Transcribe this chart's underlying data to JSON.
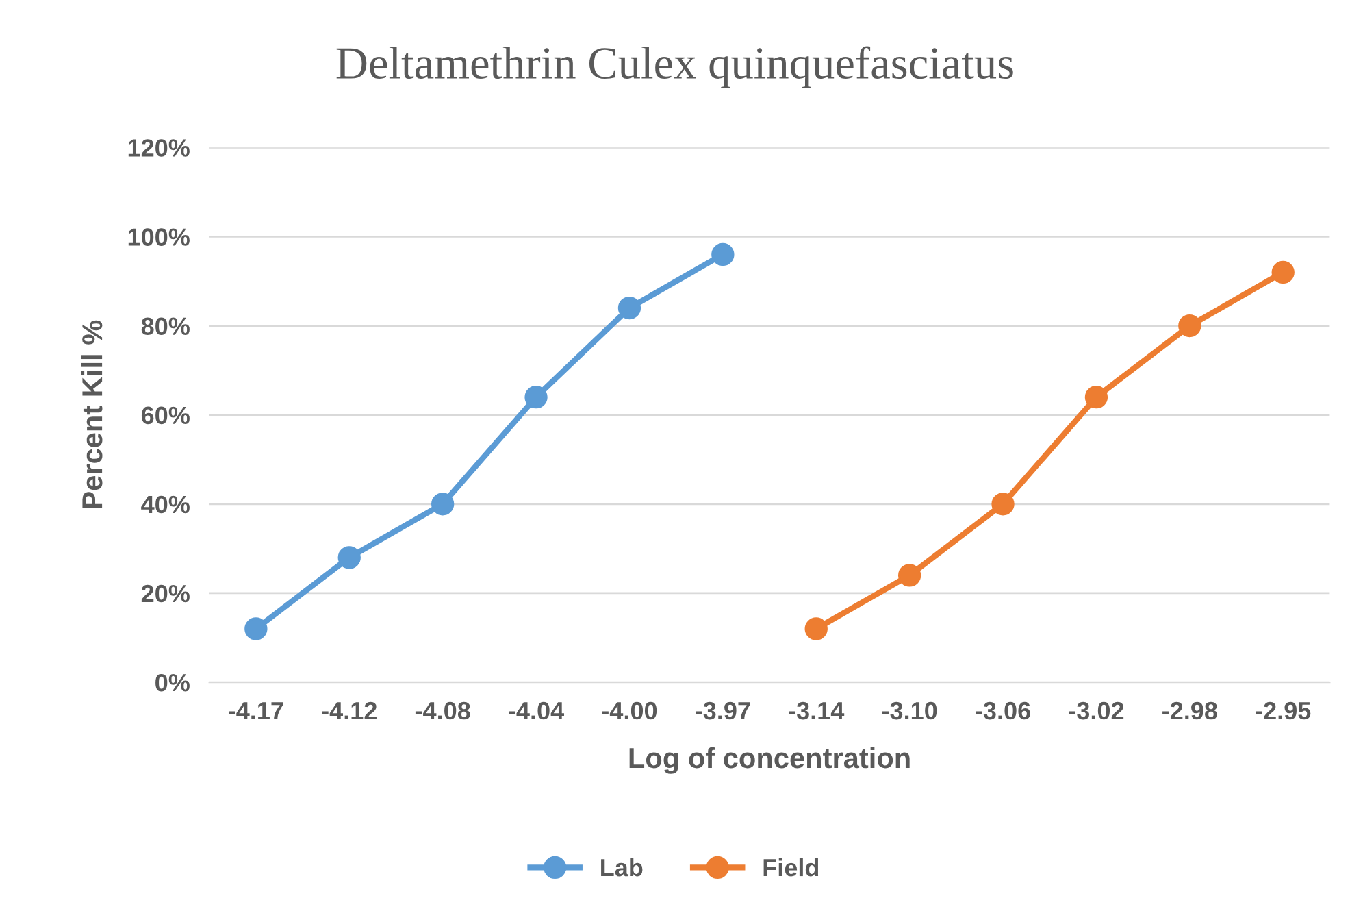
{
  "chart_data": {
    "type": "line",
    "title": "Deltamethrin Culex quinquefasciatus",
    "xlabel": "Log of concentration",
    "ylabel": "Percent Kill %",
    "categories": [
      "-4.17",
      "-4.12",
      "-4.08",
      "-4.04",
      "-4.00",
      "-3.97",
      "-3.14",
      "-3.10",
      "-3.06",
      "-3.02",
      "-2.98",
      "-2.95"
    ],
    "series": [
      {
        "name": "Lab",
        "color": "#5b9bd5",
        "values": [
          12,
          28,
          40,
          64,
          84,
          96,
          null,
          null,
          null,
          null,
          null,
          null
        ]
      },
      {
        "name": "Field",
        "color": "#ed7d31",
        "values": [
          null,
          null,
          null,
          null,
          null,
          null,
          12,
          24,
          40,
          64,
          80,
          92
        ]
      }
    ],
    "ylim": [
      0,
      120
    ],
    "yticks": [
      {
        "value": 0,
        "label": "0%"
      },
      {
        "value": 20,
        "label": "20%"
      },
      {
        "value": 40,
        "label": "40%"
      },
      {
        "value": 60,
        "label": "60%"
      },
      {
        "value": 80,
        "label": "80%"
      },
      {
        "value": 100,
        "label": "100%"
      },
      {
        "value": 120,
        "label": "120%"
      }
    ],
    "grid": "y",
    "legend": "bottom",
    "marker": "circle",
    "line_style": "solid"
  }
}
